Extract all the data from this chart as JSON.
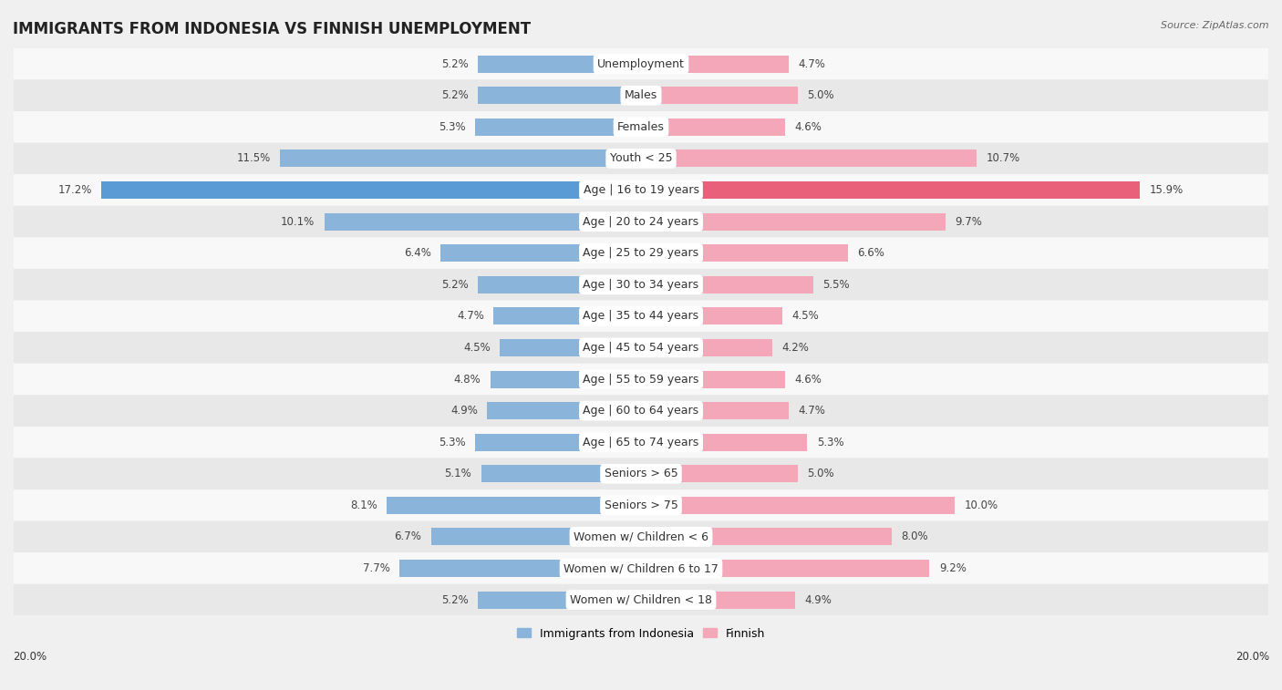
{
  "title": "IMMIGRANTS FROM INDONESIA VS FINNISH UNEMPLOYMENT",
  "source": "Source: ZipAtlas.com",
  "categories": [
    "Unemployment",
    "Males",
    "Females",
    "Youth < 25",
    "Age | 16 to 19 years",
    "Age | 20 to 24 years",
    "Age | 25 to 29 years",
    "Age | 30 to 34 years",
    "Age | 35 to 44 years",
    "Age | 45 to 54 years",
    "Age | 55 to 59 years",
    "Age | 60 to 64 years",
    "Age | 65 to 74 years",
    "Seniors > 65",
    "Seniors > 75",
    "Women w/ Children < 6",
    "Women w/ Children 6 to 17",
    "Women w/ Children < 18"
  ],
  "left_values": [
    5.2,
    5.2,
    5.3,
    11.5,
    17.2,
    10.1,
    6.4,
    5.2,
    4.7,
    4.5,
    4.8,
    4.9,
    5.3,
    5.1,
    8.1,
    6.7,
    7.7,
    5.2
  ],
  "right_values": [
    4.7,
    5.0,
    4.6,
    10.7,
    15.9,
    9.7,
    6.6,
    5.5,
    4.5,
    4.2,
    4.6,
    4.7,
    5.3,
    5.0,
    10.0,
    8.0,
    9.2,
    4.9
  ],
  "left_color": "#8ab4d9",
  "right_color": "#f4a7b9",
  "highlight_left_color": "#5b9bd5",
  "highlight_right_color": "#e8607a",
  "highlight_rows": [
    4
  ],
  "axis_max": 20.0,
  "bg_color": "#f0f0f0",
  "row_bg_even": "#f8f8f8",
  "row_bg_odd": "#e8e8e8",
  "title_fontsize": 12,
  "label_fontsize": 9,
  "value_fontsize": 8.5,
  "legend_labels": [
    "Immigrants from Indonesia",
    "Finnish"
  ]
}
